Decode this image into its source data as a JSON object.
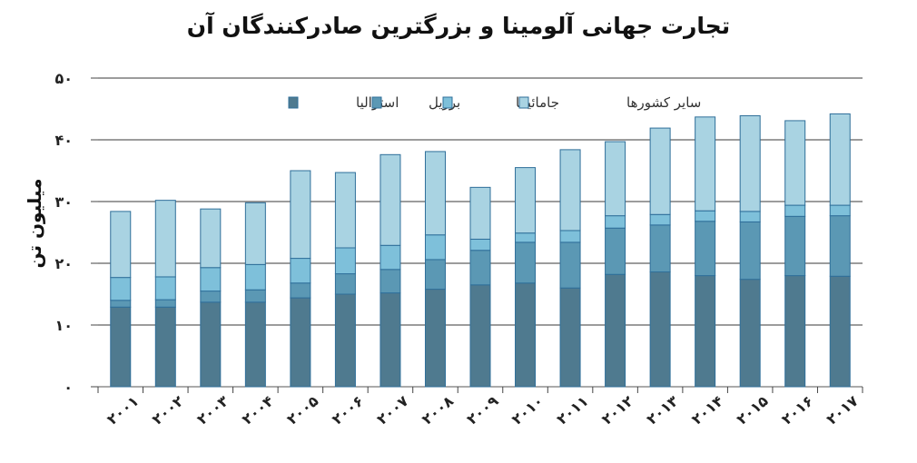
{
  "chart_data": {
    "type": "bar",
    "stacked": true,
    "title": "تجارت جهانی آلومینا و بزرگترین صادرکنندگان آن",
    "xlabel": "",
    "ylabel": "میلیون تن",
    "ylim": [
      0,
      50
    ],
    "y_ticks": [
      {
        "value": 0,
        "label": "۰"
      },
      {
        "value": 10,
        "label": "۱۰"
      },
      {
        "value": 20,
        "label": "۲۰"
      },
      {
        "value": 30,
        "label": "۳۰"
      },
      {
        "value": 40,
        "label": "۴۰"
      },
      {
        "value": 50,
        "label": "۵۰"
      }
    ],
    "categories": [
      "۲۰۰۱",
      "۲۰۰۲",
      "۲۰۰۳",
      "۲۰۰۴",
      "۲۰۰۵",
      "۲۰۰۶",
      "۲۰۰۷",
      "۲۰۰۸",
      "۲۰۰۹",
      "۲۰۱۰",
      "۲۰۱۱",
      "۲۰۱۲",
      "۲۰۱۳",
      "۲۰۱۴",
      "۲۰۱۵",
      "۲۰۱۶",
      "۲۰۱۷"
    ],
    "series": [
      {
        "name": "استرالیا",
        "color": "#4f7a8f",
        "values": [
          12.9,
          12.9,
          13.7,
          13.7,
          14.4,
          15.0,
          15.2,
          15.8,
          16.5,
          16.8,
          16.0,
          18.2,
          18.6,
          18.0,
          17.4,
          18.0,
          17.9
        ]
      },
      {
        "name": "برزیل",
        "color": "#5b98b4",
        "values": [
          1.1,
          1.2,
          1.8,
          2.0,
          2.4,
          3.3,
          3.8,
          4.8,
          5.6,
          6.6,
          7.4,
          7.5,
          7.6,
          8.8,
          9.3,
          9.6,
          9.8
        ]
      },
      {
        "name": "جامائیکا",
        "color": "#7ec0da",
        "values": [
          3.7,
          3.7,
          3.8,
          4.1,
          4.0,
          4.2,
          3.9,
          4.0,
          1.8,
          1.5,
          1.9,
          2.0,
          1.7,
          1.7,
          1.7,
          1.8,
          1.7
        ]
      },
      {
        "name": "سایر کشورها",
        "color": "#a9d3e2",
        "values": [
          10.7,
          12.4,
          9.5,
          10.0,
          14.2,
          12.2,
          14.7,
          13.5,
          8.4,
          10.6,
          13.1,
          12.0,
          14.0,
          15.2,
          15.5,
          13.7,
          14.8
        ]
      }
    ],
    "legend_position": "top",
    "grid": true
  }
}
